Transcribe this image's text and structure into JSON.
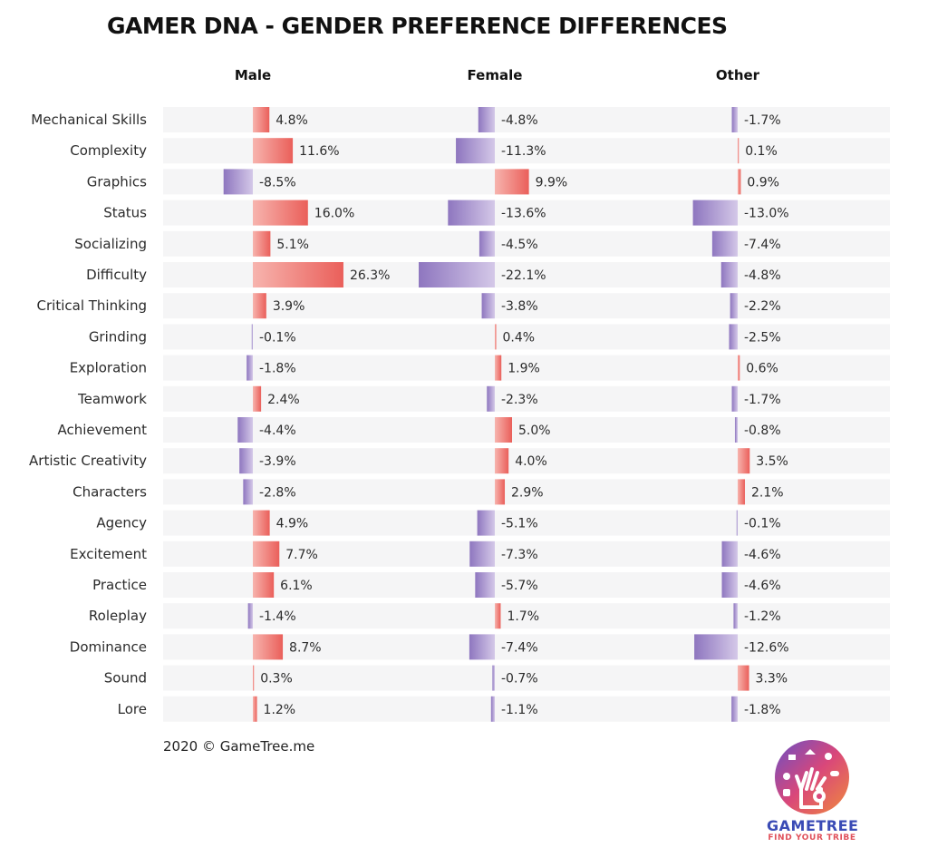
{
  "title": "GAMER DNA - GENDER PREFERENCE DIFFERENCES",
  "footer": "2020 © GameTree.me",
  "logo": {
    "name": "GAMETREE",
    "tagline": "FIND YOUR TRIBE",
    "icon": "tree-hand-logo-icon"
  },
  "colors": {
    "positive": "#ec6a64",
    "negative": "#9d86c6",
    "row_band": "#f5f5f6"
  },
  "chart_data": {
    "type": "bar",
    "orientation": "horizontal-diverging",
    "categories": [
      "Mechanical Skills",
      "Complexity",
      "Graphics",
      "Status",
      "Socializing",
      "Difficulty",
      "Critical Thinking",
      "Grinding",
      "Exploration",
      "Teamwork",
      "Achievement",
      "Artistic Creativity",
      "Characters",
      "Agency",
      "Excitement",
      "Practice",
      "Roleplay",
      "Dominance",
      "Sound",
      "Lore"
    ],
    "series": [
      {
        "name": "Male",
        "values": [
          4.8,
          11.6,
          -8.5,
          16.0,
          5.1,
          26.3,
          3.9,
          -0.1,
          -1.8,
          2.4,
          -4.4,
          -3.9,
          -2.8,
          4.9,
          7.7,
          6.1,
          -1.4,
          8.7,
          0.3,
          1.2
        ],
        "labels": [
          "4.8%",
          "11.6%",
          "-8.5%",
          "16.0%",
          "5.1%",
          "26.3%",
          "3.9%",
          "-0.1%",
          "-1.8%",
          "2.4%",
          "-4.4%",
          "-3.9%",
          "-2.8%",
          "4.9%",
          "7.7%",
          "6.1%",
          "-1.4%",
          "8.7%",
          "0.3%",
          "1.2%"
        ]
      },
      {
        "name": "Female",
        "values": [
          -4.8,
          -11.3,
          9.9,
          -13.6,
          -4.5,
          -22.1,
          -3.8,
          0.4,
          1.9,
          -2.3,
          5.0,
          4.0,
          2.9,
          -5.1,
          -7.3,
          -5.7,
          1.7,
          -7.4,
          -0.7,
          -1.1
        ],
        "labels": [
          "-4.8%",
          "-11.3%",
          "9.9%",
          "-13.6%",
          "-4.5%",
          "-22.1%",
          "-3.8%",
          "0.4%",
          "1.9%",
          "-2.3%",
          "5.0%",
          "4.0%",
          "2.9%",
          "-5.1%",
          "-7.3%",
          "-5.7%",
          "1.7%",
          "-7.4%",
          "-0.7%",
          "-1.1%"
        ]
      },
      {
        "name": "Other",
        "values": [
          -1.7,
          0.1,
          0.9,
          -13.0,
          -7.4,
          -4.8,
          -2.2,
          -2.5,
          0.6,
          -1.7,
          -0.8,
          3.5,
          2.1,
          -0.1,
          -4.6,
          -4.6,
          -1.2,
          -12.6,
          3.3,
          -1.8
        ],
        "labels": [
          "-1.7%",
          "0.1%",
          "0.9%",
          "-13.0%",
          "-7.4%",
          "-4.8%",
          "-2.2%",
          "-2.5%",
          "0.6%",
          "-1.7%",
          "-0.8%",
          "3.5%",
          "2.1%",
          "-0.1%",
          "-4.6%",
          "-4.6%",
          "-1.2%",
          "-12.6%",
          "3.3%",
          "-1.8%"
        ]
      }
    ],
    "grid": false,
    "legend": "none"
  }
}
